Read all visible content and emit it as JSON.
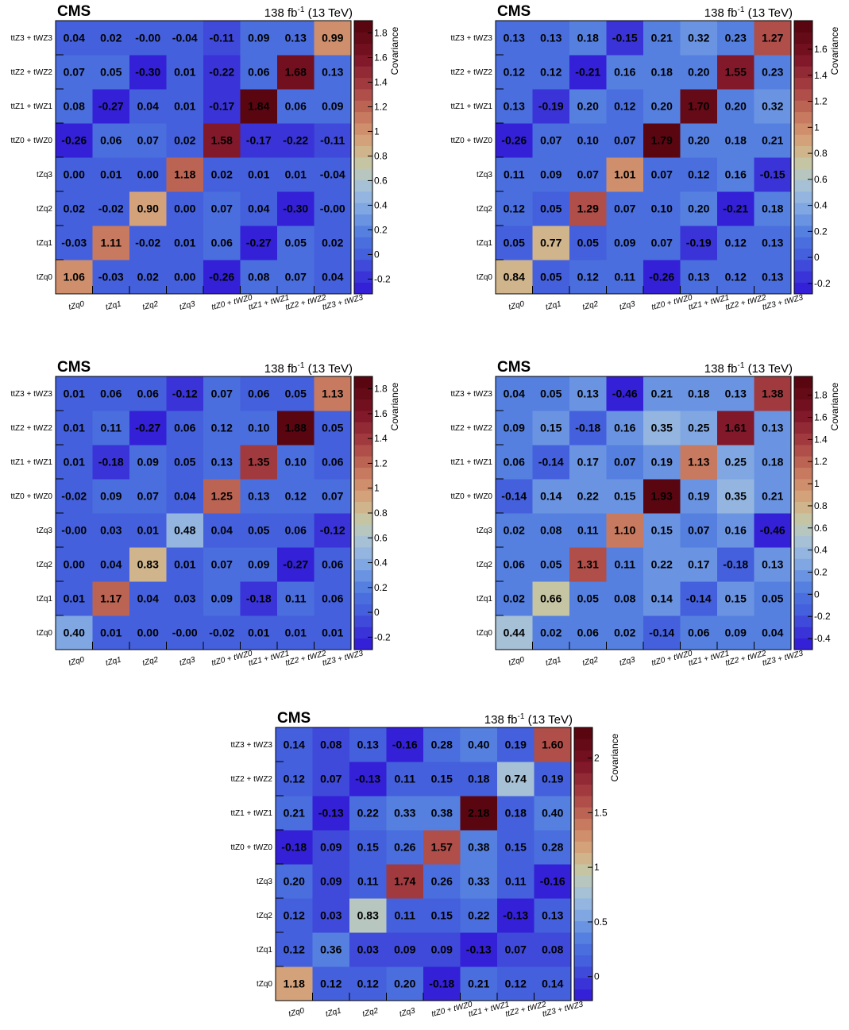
{
  "chart_data": [
    {
      "type": "heatmap",
      "experiment": "CMS",
      "lumi": "138 fb",
      "lumi_exp": "-1",
      "energy": " (13 TeV)",
      "x_labels": [
        "tZq0",
        "tZq1",
        "tZq2",
        "tZq3",
        "ttZ0 + tWZ0",
        "ttZ1 + tWZ1",
        "ttZ2 + tWZ2",
        "ttZ3 + tWZ3"
      ],
      "y_labels": [
        "tZq0",
        "tZq1",
        "tZq2",
        "tZq3",
        "ttZ0 + tWZ0",
        "ttZ1 + tWZ1",
        "ttZ2 + tWZ2",
        "ttZ3 + tWZ3"
      ],
      "values": [
        [
          "1.06",
          "-0.03",
          "0.02",
          "0.00",
          "-0.26",
          "0.08",
          "0.07",
          "0.04"
        ],
        [
          "-0.03",
          "1.11",
          "-0.02",
          "0.01",
          "0.06",
          "-0.27",
          "0.05",
          "0.02"
        ],
        [
          "0.02",
          "-0.02",
          "0.90",
          "0.00",
          "0.07",
          "0.04",
          "-0.30",
          "-0.00"
        ],
        [
          "0.00",
          "0.01",
          "0.00",
          "1.18",
          "0.02",
          "0.01",
          "0.01",
          "-0.04"
        ],
        [
          "-0.26",
          "0.06",
          "0.07",
          "0.02",
          "1.58",
          "-0.17",
          "-0.22",
          "-0.11"
        ],
        [
          "0.08",
          "-0.27",
          "0.04",
          "0.01",
          "-0.17",
          "1.84",
          "0.06",
          "0.09"
        ],
        [
          "0.07",
          "0.05",
          "-0.30",
          "0.01",
          "-0.22",
          "0.06",
          "1.68",
          "0.13"
        ],
        [
          "0.04",
          "0.02",
          "-0.00",
          "-0.04",
          "-0.11",
          "0.09",
          "0.13",
          "0.99"
        ]
      ],
      "colorbar": {
        "title": "Covariance",
        "min": -0.32,
        "max": 1.9,
        "ticks": [
          "-0.2",
          "0",
          "0.2",
          "0.4",
          "0.6",
          "0.8",
          "1",
          "1.2",
          "1.4",
          "1.6",
          "1.8"
        ]
      }
    },
    {
      "type": "heatmap",
      "experiment": "CMS",
      "lumi": "138 fb",
      "lumi_exp": "-1",
      "energy": " (13 TeV)",
      "x_labels": [
        "tZq0",
        "tZq1",
        "tZq2",
        "tZq3",
        "ttZ0 + tWZ0",
        "ttZ1 + tWZ1",
        "ttZ2 + tWZ2",
        "ttZ3 + tWZ3"
      ],
      "y_labels": [
        "tZq0",
        "tZq1",
        "tZq2",
        "tZq3",
        "ttZ0 + tWZ0",
        "ttZ1 + tWZ1",
        "ttZ2 + tWZ2",
        "ttZ3 + tWZ3"
      ],
      "values": [
        [
          "0.84",
          "0.05",
          "0.12",
          "0.11",
          "-0.26",
          "0.13",
          "0.12",
          "0.13"
        ],
        [
          "0.05",
          "0.77",
          "0.05",
          "0.09",
          "0.07",
          "-0.19",
          "0.12",
          "0.13"
        ],
        [
          "0.12",
          "0.05",
          "1.29",
          "0.07",
          "0.10",
          "0.20",
          "-0.21",
          "0.18"
        ],
        [
          "0.11",
          "0.09",
          "0.07",
          "1.01",
          "0.07",
          "0.12",
          "0.16",
          "-0.15"
        ],
        [
          "-0.26",
          "0.07",
          "0.10",
          "0.07",
          "1.79",
          "0.20",
          "0.18",
          "0.21"
        ],
        [
          "0.13",
          "-0.19",
          "0.20",
          "0.12",
          "0.20",
          "1.70",
          "0.20",
          "0.32"
        ],
        [
          "0.12",
          "0.12",
          "-0.21",
          "0.16",
          "0.18",
          "0.20",
          "1.55",
          "0.23"
        ],
        [
          "0.13",
          "0.13",
          "0.18",
          "-0.15",
          "0.21",
          "0.32",
          "0.23",
          "1.27"
        ]
      ],
      "colorbar": {
        "title": "Covariance",
        "min": -0.28,
        "max": 1.82,
        "ticks": [
          "-0.2",
          "0",
          "0.2",
          "0.4",
          "0.6",
          "0.8",
          "1",
          "1.2",
          "1.4",
          "1.6"
        ]
      }
    },
    {
      "type": "heatmap",
      "experiment": "CMS",
      "lumi": "138 fb",
      "lumi_exp": "-1",
      "energy": " (13 TeV)",
      "x_labels": [
        "tZq0",
        "tZq1",
        "tZq2",
        "tZq3",
        "ttZ0 + tWZ0",
        "ttZ1 + tWZ1",
        "ttZ2 + tWZ2",
        "ttZ3 + tWZ3"
      ],
      "y_labels": [
        "tZq0",
        "tZq1",
        "tZq2",
        "tZq3",
        "ttZ0 + tWZ0",
        "ttZ1 + tWZ1",
        "ttZ2 + tWZ2",
        "ttZ3 + tWZ3"
      ],
      "values": [
        [
          "0.40",
          "0.01",
          "0.00",
          "-0.00",
          "-0.02",
          "0.01",
          "0.01",
          "0.01"
        ],
        [
          "0.01",
          "1.17",
          "0.04",
          "0.03",
          "0.09",
          "-0.18",
          "0.11",
          "0.06"
        ],
        [
          "0.00",
          "0.04",
          "0.83",
          "0.01",
          "0.07",
          "0.09",
          "-0.27",
          "0.06"
        ],
        [
          "-0.00",
          "0.03",
          "0.01",
          "0.48",
          "0.04",
          "0.05",
          "0.06",
          "-0.12"
        ],
        [
          "-0.02",
          "0.09",
          "0.07",
          "0.04",
          "1.25",
          "0.13",
          "0.12",
          "0.07"
        ],
        [
          "0.01",
          "-0.18",
          "0.09",
          "0.05",
          "0.13",
          "1.35",
          "0.10",
          "0.06"
        ],
        [
          "0.01",
          "0.11",
          "-0.27",
          "0.06",
          "0.12",
          "0.10",
          "1.88",
          "0.05"
        ],
        [
          "0.01",
          "0.06",
          "0.06",
          "-0.12",
          "0.07",
          "0.06",
          "0.05",
          "1.13"
        ]
      ],
      "colorbar": {
        "title": "Covariance",
        "min": -0.3,
        "max": 1.9,
        "ticks": [
          "-0.2",
          "0",
          "0.2",
          "0.4",
          "0.6",
          "0.8",
          "1",
          "1.2",
          "1.4",
          "1.6",
          "1.8"
        ]
      }
    },
    {
      "type": "heatmap",
      "experiment": "CMS",
      "lumi": "138 fb",
      "lumi_exp": "-1",
      "energy": " (13 TeV)",
      "x_labels": [
        "tZq0",
        "tZq1",
        "tZq2",
        "tZq3",
        "ttZ0 + tWZ0",
        "ttZ1 + tWZ1",
        "ttZ2 + tWZ2",
        "ttZ3 + tWZ3"
      ],
      "y_labels": [
        "tZq0",
        "tZq1",
        "tZq2",
        "tZq3",
        "ttZ0 + tWZ0",
        "ttZ1 + tWZ1",
        "ttZ2 + tWZ2",
        "ttZ3 + tWZ3"
      ],
      "values": [
        [
          "0.44",
          "0.02",
          "0.06",
          "0.02",
          "-0.14",
          "0.06",
          "0.09",
          "0.04"
        ],
        [
          "0.02",
          "0.66",
          "0.05",
          "0.08",
          "0.14",
          "-0.14",
          "0.15",
          "0.05"
        ],
        [
          "0.06",
          "0.05",
          "1.31",
          "0.11",
          "0.22",
          "0.17",
          "-0.18",
          "0.13"
        ],
        [
          "0.02",
          "0.08",
          "0.11",
          "1.10",
          "0.15",
          "0.07",
          "0.16",
          "-0.46"
        ],
        [
          "-0.14",
          "0.14",
          "0.22",
          "0.15",
          "1.93",
          "0.19",
          "0.35",
          "0.21"
        ],
        [
          "0.06",
          "-0.14",
          "0.17",
          "0.07",
          "0.19",
          "1.13",
          "0.25",
          "0.18"
        ],
        [
          "0.09",
          "0.15",
          "-0.18",
          "0.16",
          "0.35",
          "0.25",
          "1.61",
          "0.13"
        ],
        [
          "0.04",
          "0.05",
          "0.13",
          "-0.46",
          "0.21",
          "0.18",
          "0.13",
          "1.38"
        ]
      ],
      "colorbar": {
        "title": "Covariance",
        "min": -0.5,
        "max": 1.97,
        "ticks": [
          "-0.4",
          "-0.2",
          "0",
          "0.2",
          "0.4",
          "0.6",
          "0.8",
          "1",
          "1.2",
          "1.4",
          "1.6",
          "1.8"
        ]
      }
    },
    {
      "type": "heatmap",
      "experiment": "CMS",
      "lumi": "138 fb",
      "lumi_exp": "-1",
      "energy": " (13 TeV)",
      "x_labels": [
        "tZq0",
        "tZq1",
        "tZq2",
        "tZq3",
        "ttZ0 + tWZ0",
        "ttZ1 + tWZ1",
        "ttZ2 + tWZ2",
        "ttZ3 + tWZ3"
      ],
      "y_labels": [
        "tZq0",
        "tZq1",
        "tZq2",
        "tZq3",
        "ttZ0 + tWZ0",
        "ttZ1 + tWZ1",
        "ttZ2 + tWZ2",
        "ttZ3 + tWZ3"
      ],
      "values": [
        [
          "1.18",
          "0.12",
          "0.12",
          "0.20",
          "-0.18",
          "0.21",
          "0.12",
          "0.14"
        ],
        [
          "0.12",
          "0.36",
          "0.03",
          "0.09",
          "0.09",
          "-0.13",
          "0.07",
          "0.08"
        ],
        [
          "0.12",
          "0.03",
          "0.83",
          "0.11",
          "0.15",
          "0.22",
          "-0.13",
          "0.13"
        ],
        [
          "0.20",
          "0.09",
          "0.11",
          "1.74",
          "0.26",
          "0.33",
          "0.11",
          "-0.16"
        ],
        [
          "-0.18",
          "0.09",
          "0.15",
          "0.26",
          "1.57",
          "0.38",
          "0.15",
          "0.28"
        ],
        [
          "0.21",
          "-0.13",
          "0.22",
          "0.33",
          "0.38",
          "2.18",
          "0.18",
          "0.40"
        ],
        [
          "0.12",
          "0.07",
          "-0.13",
          "0.11",
          "0.15",
          "0.18",
          "0.74",
          "0.19"
        ],
        [
          "0.14",
          "0.08",
          "0.13",
          "-0.16",
          "0.28",
          "0.40",
          "0.19",
          "1.60"
        ]
      ],
      "colorbar": {
        "title": "Covariance",
        "min": -0.22,
        "max": 2.28,
        "ticks": [
          "0",
          "0.5",
          "1",
          "1.5",
          "2"
        ]
      }
    }
  ]
}
